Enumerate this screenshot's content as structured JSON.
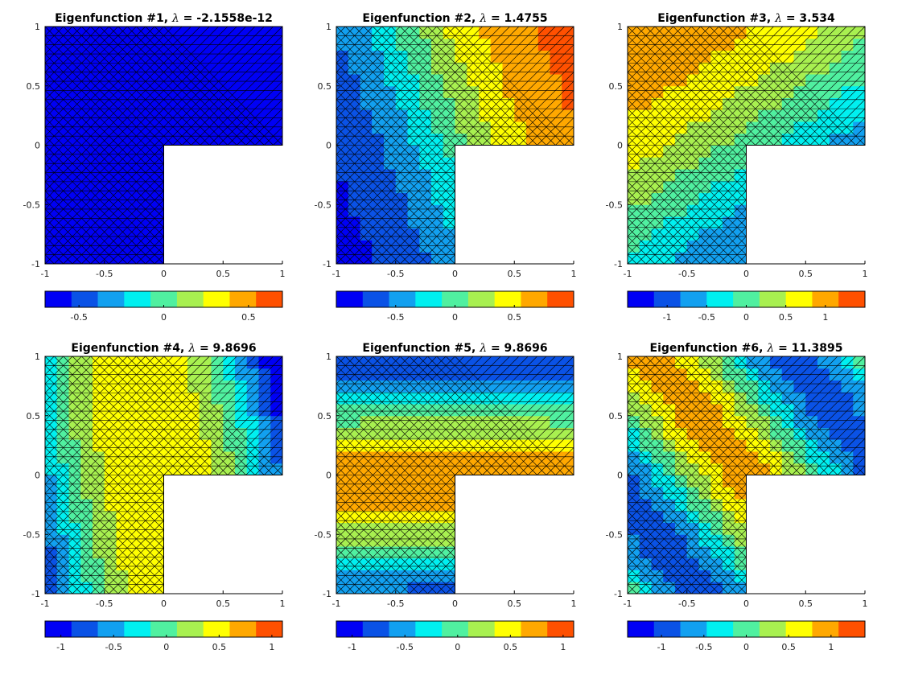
{
  "figure": {
    "background": "#ffffff"
  },
  "colormap": [
    "#0000f5",
    "#0a52e6",
    "#12a0f0",
    "#00f0f0",
    "#50f0a0",
    "#a8f050",
    "#ffff00",
    "#ffa800",
    "#ff5000"
  ],
  "chart_data": [
    {
      "type": "heatmap",
      "title_prefix": "Eigenfunction #1, ",
      "lambda_symbol": "λ",
      "title_value": " = -2.1558e-12",
      "domain": "L-shaped",
      "xlim": [
        -1,
        1
      ],
      "ylim": [
        -1,
        1
      ],
      "xticks": [
        "-1",
        "-0.5",
        "0",
        "0.5",
        "1"
      ],
      "yticks": [
        "-1",
        "-0.5",
        "0",
        "0.5",
        "1"
      ],
      "colorbar": {
        "range": [
          -0.7,
          0.7
        ],
        "ticks": [
          -0.5,
          0,
          0.5
        ],
        "tick_labels": [
          "-0.5",
          "0",
          "0.5"
        ]
      }
    },
    {
      "type": "heatmap",
      "title_prefix": "Eigenfunction #2, ",
      "lambda_symbol": "λ",
      "title_value": " = 1.4755",
      "domain": "L-shaped",
      "xlim": [
        -1,
        1
      ],
      "ylim": [
        -1,
        1
      ],
      "xticks": [
        "-1",
        "-0.5",
        "0",
        "0.5",
        "1"
      ],
      "yticks": [
        "-1",
        "-0.5",
        "0",
        "0.5",
        "1"
      ],
      "colorbar": {
        "range": [
          -1.0,
          1.0
        ],
        "ticks": [
          -0.5,
          0,
          0.5
        ],
        "tick_labels": [
          "-0.5",
          "0",
          "0.5"
        ]
      }
    },
    {
      "type": "heatmap",
      "title_prefix": "Eigenfunction #3, ",
      "lambda_symbol": "λ",
      "title_value": " = 3.534",
      "domain": "L-shaped",
      "xlim": [
        -1,
        1
      ],
      "ylim": [
        -1,
        1
      ],
      "xticks": [
        "-1",
        "-0.5",
        "0",
        "0.5",
        "1"
      ],
      "yticks": [
        "-1",
        "-0.5",
        "0",
        "0.5",
        "1"
      ],
      "colorbar": {
        "range": [
          -1.5,
          1.5
        ],
        "ticks": [
          -1,
          -0.5,
          0,
          0.5,
          1
        ],
        "tick_labels": [
          "-1",
          "-0.5",
          "0",
          "0.5",
          "1"
        ]
      }
    },
    {
      "type": "heatmap",
      "title_prefix": "Eigenfunction #4, ",
      "lambda_symbol": "λ",
      "title_value": " = 9.8696",
      "domain": "L-shaped",
      "xlim": [
        -1,
        1
      ],
      "ylim": [
        -1,
        1
      ],
      "xticks": [
        "-1",
        "-0.5",
        "0",
        "0.5",
        "1"
      ],
      "yticks": [
        "-1",
        "-0.5",
        "0",
        "0.5",
        "1"
      ],
      "colorbar": {
        "range": [
          -1.15,
          1.1
        ],
        "ticks": [
          -1,
          -0.5,
          0,
          0.5,
          1
        ],
        "tick_labels": [
          "-1",
          "-0.5",
          "0",
          "0.5",
          "1"
        ]
      }
    },
    {
      "type": "heatmap",
      "title_prefix": "Eigenfunction #5, ",
      "lambda_symbol": "λ",
      "title_value": " = 9.8696",
      "domain": "L-shaped",
      "xlim": [
        -1,
        1
      ],
      "ylim": [
        -1,
        1
      ],
      "xticks": [
        "-1",
        "-0.5",
        "0",
        "0.5",
        "1"
      ],
      "yticks": [
        "-1",
        "-0.5",
        "0",
        "0.5",
        "1"
      ],
      "colorbar": {
        "range": [
          -1.15,
          1.1
        ],
        "ticks": [
          -1,
          -0.5,
          0,
          0.5,
          1
        ],
        "tick_labels": [
          "-1",
          "-0.5",
          "0",
          "0.5",
          "1"
        ]
      }
    },
    {
      "type": "heatmap",
      "title_prefix": "Eigenfunction #6, ",
      "lambda_symbol": "λ",
      "title_value": " = 11.3895",
      "domain": "L-shaped",
      "xlim": [
        -1,
        1
      ],
      "ylim": [
        -1,
        1
      ],
      "xticks": [
        "-1",
        "-0.5",
        "0",
        "0.5",
        "1"
      ],
      "yticks": [
        "-1",
        "-0.5",
        "0",
        "0.5",
        "1"
      ],
      "colorbar": {
        "range": [
          -1.4,
          1.4
        ],
        "ticks": [
          -1,
          -0.5,
          0,
          0.5,
          1
        ],
        "tick_labels": [
          "-1",
          "-0.5",
          "0",
          "0.5",
          "1"
        ]
      }
    }
  ]
}
